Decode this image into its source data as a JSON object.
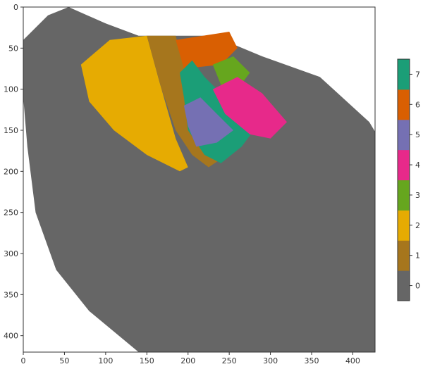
{
  "chart_data": {
    "type": "heatmap",
    "title": "",
    "xlabel": "",
    "ylabel": "",
    "xlim": [
      0,
      427
    ],
    "ylim": [
      420,
      0
    ],
    "x_ticks": [
      "0",
      "50",
      "100",
      "150",
      "200",
      "250",
      "300",
      "350",
      "400"
    ],
    "y_ticks": [
      "0",
      "50",
      "100",
      "150",
      "200",
      "250",
      "300",
      "350",
      "400"
    ],
    "grid": false,
    "colorbar": {
      "range": [
        -0.5,
        7.5
      ],
      "ticks": [
        "0",
        "1",
        "2",
        "3",
        "4",
        "5",
        "6",
        "7"
      ],
      "colors": [
        "#666666",
        "#a6761d",
        "#e6ab02",
        "#66a61e",
        "#e7298a",
        "#7570b3",
        "#d95f02",
        "#1b9e77"
      ]
    },
    "regions": [
      {
        "label": 0,
        "color": "#666666",
        "outline": [
          [
            0,
            40
          ],
          [
            30,
            10
          ],
          [
            55,
            0
          ],
          [
            100,
            20
          ],
          [
            140,
            35
          ],
          [
            230,
            35
          ],
          [
            290,
            60
          ],
          [
            360,
            85
          ],
          [
            420,
            140
          ],
          [
            450,
            190
          ],
          [
            470,
            240
          ],
          [
            470,
            330
          ],
          [
            440,
            420
          ],
          [
            420,
            440
          ],
          [
            330,
            440
          ],
          [
            260,
            450
          ],
          [
            200,
            440
          ],
          [
            140,
            420
          ],
          [
            80,
            370
          ],
          [
            40,
            320
          ],
          [
            15,
            250
          ],
          [
            5,
            170
          ],
          [
            0,
            110
          ]
        ]
      },
      {
        "label": 2,
        "color": "#e6ab02",
        "outline": [
          [
            70,
            70
          ],
          [
            105,
            40
          ],
          [
            150,
            35
          ],
          [
            165,
            90
          ],
          [
            185,
            160
          ],
          [
            200,
            195
          ],
          [
            190,
            200
          ],
          [
            150,
            180
          ],
          [
            110,
            150
          ],
          [
            80,
            115
          ]
        ]
      },
      {
        "label": 1,
        "color": "#a6761d",
        "outline": [
          [
            150,
            35
          ],
          [
            185,
            35
          ],
          [
            195,
            70
          ],
          [
            210,
            110
          ],
          [
            235,
            150
          ],
          [
            240,
            185
          ],
          [
            225,
            195
          ],
          [
            205,
            180
          ],
          [
            185,
            150
          ],
          [
            168,
            100
          ]
        ]
      },
      {
        "label": 6,
        "color": "#d95f02",
        "outline": [
          [
            185,
            40
          ],
          [
            250,
            30
          ],
          [
            260,
            50
          ],
          [
            240,
            70
          ],
          [
            195,
            75
          ]
        ]
      },
      {
        "label": 3,
        "color": "#66a61e",
        "outline": [
          [
            230,
            70
          ],
          [
            255,
            60
          ],
          [
            275,
            80
          ],
          [
            260,
            100
          ],
          [
            240,
            95
          ]
        ]
      },
      {
        "label": 7,
        "color": "#1b9e77",
        "outline": [
          [
            190,
            80
          ],
          [
            205,
            65
          ],
          [
            220,
            85
          ],
          [
            235,
            100
          ],
          [
            250,
            120
          ],
          [
            280,
            150
          ],
          [
            265,
            170
          ],
          [
            240,
            190
          ],
          [
            220,
            180
          ],
          [
            200,
            150
          ],
          [
            195,
            110
          ]
        ]
      },
      {
        "label": 4,
        "color": "#e7298a",
        "outline": [
          [
            230,
            100
          ],
          [
            260,
            85
          ],
          [
            290,
            105
          ],
          [
            320,
            140
          ],
          [
            300,
            160
          ],
          [
            275,
            155
          ],
          [
            245,
            130
          ]
        ]
      },
      {
        "label": 5,
        "color": "#7570b3",
        "outline": [
          [
            195,
            120
          ],
          [
            215,
            110
          ],
          [
            235,
            130
          ],
          [
            255,
            150
          ],
          [
            235,
            165
          ],
          [
            210,
            170
          ],
          [
            200,
            145
          ]
        ]
      }
    ]
  }
}
